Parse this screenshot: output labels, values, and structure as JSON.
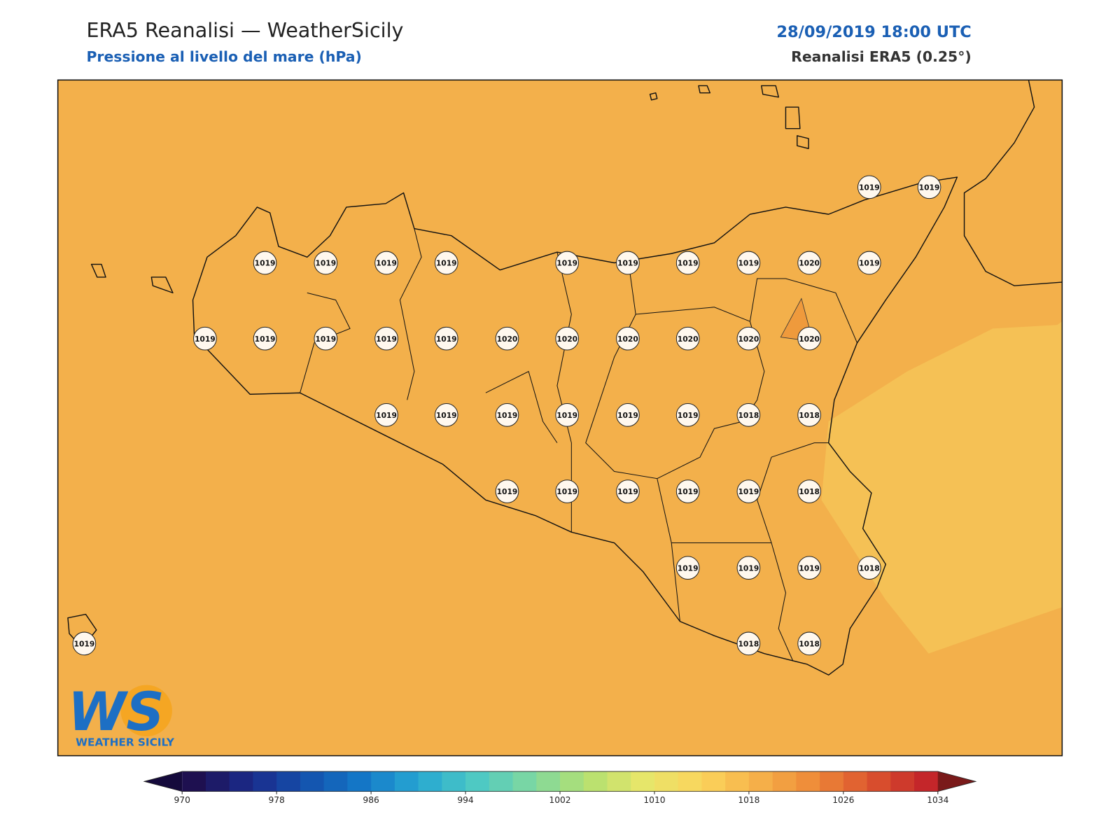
{
  "header": {
    "title": "ERA5 Reanalisi — WeatherSicily",
    "subtitle": "Pressione al livello del mare (hPa)",
    "datetime": "28/09/2019 18:00 UTC",
    "source": "Reanalisi ERA5 (0.25°)"
  },
  "stations": [
    1019,
    1019,
    1019,
    1019,
    1019,
    1019,
    1019,
    1019,
    1019,
    1019,
    1020,
    1019,
    1019,
    1019,
    1019,
    1019,
    1019,
    1020,
    1020,
    1020,
    1020,
    1020,
    1020,
    1019,
    1019,
    1019,
    1019,
    1019,
    1019,
    1018,
    1018,
    1019,
    1019,
    1019,
    1019,
    1019,
    1018,
    1019,
    1019,
    1019,
    1018,
    1018,
    1018,
    1019
  ],
  "colorbar": {
    "ticks": [
      970,
      978,
      986,
      994,
      1002,
      1010,
      1018,
      1026,
      1034
    ]
  },
  "logo": {
    "mark": "WS",
    "text": "WEATHER SICILY"
  }
}
